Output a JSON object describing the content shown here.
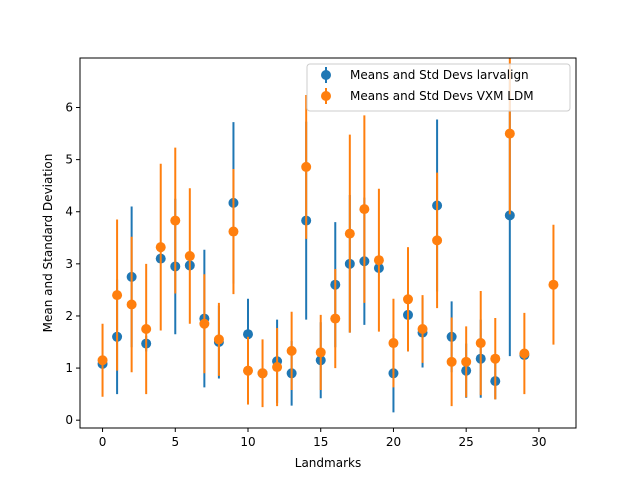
{
  "chart_data": {
    "type": "scatter",
    "title": "",
    "xlabel": "Landmarks",
    "ylabel": "Mean and Standard Deviation",
    "xlim": [
      -1.55,
      32.55
    ],
    "ylim": [
      -0.15,
      6.95
    ],
    "xticks": [
      0,
      5,
      10,
      15,
      20,
      25,
      30
    ],
    "yticks": [
      0,
      1,
      2,
      3,
      4,
      5,
      6
    ],
    "grid": false,
    "legend_position": "top-right",
    "series": [
      {
        "name": "Means and Std Devs larvalign",
        "color": "#1f77b4",
        "x": [
          0,
          1,
          2,
          3,
          4,
          5,
          6,
          7,
          8,
          9,
          10,
          11,
          12,
          13,
          14,
          15,
          16,
          17,
          18,
          19,
          20,
          21,
          22,
          23,
          24,
          25,
          26,
          27,
          28,
          29
        ],
        "y": [
          1.08,
          1.6,
          2.75,
          1.47,
          3.1,
          2.95,
          2.97,
          1.95,
          1.5,
          4.17,
          1.65,
          0.9,
          1.13,
          0.9,
          3.83,
          1.15,
          2.6,
          3.0,
          3.05,
          2.92,
          0.9,
          2.02,
          1.68,
          4.12,
          1.6,
          0.95,
          1.18,
          0.75,
          3.93,
          1.25
        ],
        "err": [
          0.1,
          1.1,
          1.35,
          0.15,
          0.05,
          1.3,
          0.1,
          1.32,
          0.7,
          1.55,
          0.68,
          0.05,
          0.8,
          0.62,
          1.9,
          0.73,
          1.2,
          1.32,
          1.22,
          0.03,
          0.75,
          0.7,
          0.67,
          1.65,
          0.68,
          0.52,
          0.75,
          0.35,
          2.7,
          0.05
        ]
      },
      {
        "name": "Means and Std Devs VXM LDM",
        "color": "#ff7f0e",
        "x": [
          0,
          1,
          2,
          3,
          4,
          5,
          6,
          7,
          8,
          9,
          10,
          11,
          12,
          13,
          14,
          15,
          16,
          17,
          18,
          19,
          20,
          21,
          22,
          23,
          24,
          25,
          26,
          27,
          28,
          29,
          31
        ],
        "y": [
          1.15,
          2.4,
          2.22,
          1.75,
          3.32,
          3.83,
          3.15,
          1.85,
          1.55,
          3.62,
          0.95,
          0.9,
          1.02,
          1.33,
          4.86,
          1.3,
          1.95,
          3.58,
          4.05,
          3.07,
          1.48,
          2.32,
          1.75,
          3.45,
          1.12,
          1.12,
          1.48,
          1.18,
          5.5,
          1.28,
          2.6
        ],
        "err": [
          0.7,
          1.45,
          1.3,
          1.25,
          1.6,
          1.4,
          1.3,
          0.95,
          0.7,
          1.2,
          0.65,
          0.65,
          0.75,
          0.75,
          1.38,
          0.72,
          0.95,
          1.9,
          1.8,
          1.37,
          0.85,
          1.0,
          0.65,
          1.3,
          0.85,
          0.68,
          1.0,
          0.78,
          1.55,
          0.78,
          1.15
        ]
      }
    ]
  }
}
